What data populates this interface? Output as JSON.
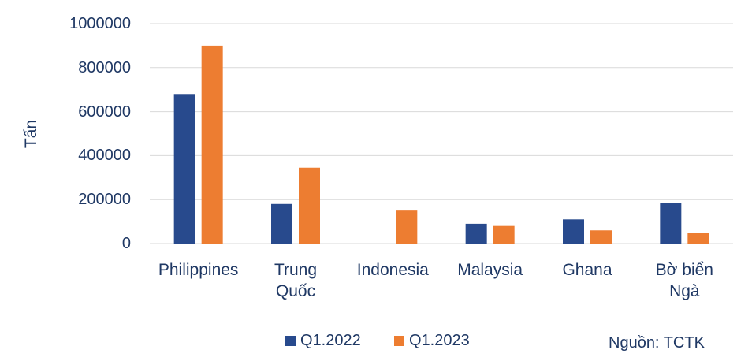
{
  "chart_data": {
    "type": "bar",
    "y_label": "Tấn",
    "source": "Nguồn: TCTK",
    "categories": [
      "Philippines",
      "Trung\nQuốc",
      "Indonesia",
      "Malaysia",
      "Ghana",
      "Bờ biển\nNgà"
    ],
    "series": [
      {
        "name": "Q1.2022",
        "color": "#284a8d",
        "values": [
          680000,
          180000,
          null,
          90000,
          110000,
          185000
        ]
      },
      {
        "name": "Q1.2023",
        "color": "#ed7d31",
        "values": [
          900000,
          345000,
          150000,
          80000,
          60000,
          50000
        ]
      }
    ],
    "ylim": [
      0,
      1000000
    ],
    "yticks": [
      0,
      200000,
      400000,
      600000,
      800000,
      1000000
    ],
    "grid": true
  }
}
